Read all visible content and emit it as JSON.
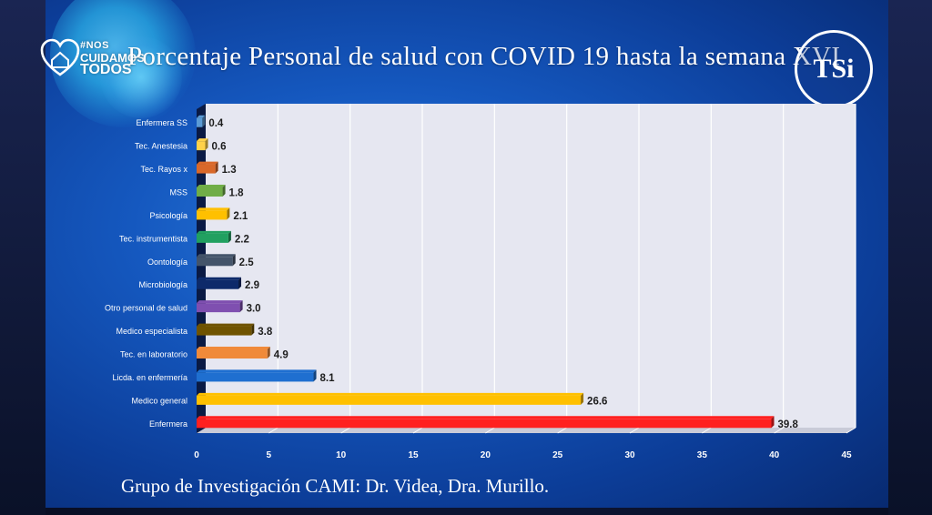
{
  "logo_left": {
    "line1": "#NOS",
    "line2": "CUIDAMOS",
    "line3": "TODOS",
    "icon": "heart-house-icon"
  },
  "logo_right": {
    "text": "TSi"
  },
  "footer": "Grupo de Investigación CAMI: Dr. Videa, Dra. Murillo.",
  "chart_data": {
    "type": "bar",
    "orientation": "horizontal",
    "title": "Porcentaje Personal de salud con COVID 19 hasta la semana XVI",
    "categories": [
      "Enfermera SS",
      "Tec. Anestesia",
      "Tec. Rayos x",
      "MSS",
      "Psicología",
      "Tec. instrumentista",
      "Oontología",
      "Microbiología",
      "Otro personal de salud",
      "Medico especialista",
      "Tec. en laboratorio",
      "Licda. en enfermería",
      "Medico general",
      "Enfermera"
    ],
    "values": [
      0.4,
      0.6,
      1.3,
      1.8,
      2.1,
      2.2,
      2.5,
      2.9,
      3.0,
      3.8,
      4.9,
      8.1,
      26.6,
      39.8
    ],
    "value_labels": [
      "0.4",
      "0.6",
      "1.3",
      "1.8",
      "2.1",
      "2.2",
      "2.5",
      "2.9",
      "3.0",
      "3.8",
      "4.9",
      "8.1",
      "26.6",
      "39.8"
    ],
    "colors": [
      "#5b9bd5",
      "#ffd24a",
      "#d9682a",
      "#70ad47",
      "#ffc000",
      "#21a060",
      "#44546a",
      "#0d2a6a",
      "#7f4fb0",
      "#6f5300",
      "#f08a3a",
      "#1f6fd0",
      "#ffc000",
      "#ff2020"
    ],
    "xlim": [
      0,
      45
    ],
    "xticks": [
      "0",
      "5",
      "10",
      "15",
      "20",
      "25",
      "30",
      "35",
      "40",
      "45"
    ],
    "xtick_values": [
      0,
      5,
      10,
      15,
      20,
      25,
      30,
      35,
      40,
      45
    ],
    "grid": true,
    "legend": "none"
  }
}
